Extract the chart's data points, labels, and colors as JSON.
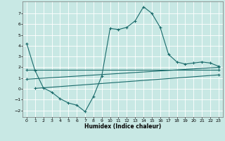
{
  "xlabel": "Humidex (Indice chaleur)",
  "background_color": "#c8e8e4",
  "grid_color": "#ffffff",
  "line_color": "#1a6b6b",
  "xlim": [
    -0.5,
    23.5
  ],
  "ylim": [
    -2.6,
    8.1
  ],
  "yticks": [
    -2,
    -1,
    0,
    1,
    2,
    3,
    4,
    5,
    6,
    7
  ],
  "xticks": [
    0,
    1,
    2,
    3,
    4,
    5,
    6,
    7,
    8,
    9,
    10,
    11,
    12,
    13,
    14,
    15,
    16,
    17,
    18,
    19,
    20,
    21,
    22,
    23
  ],
  "line1_x": [
    0,
    1,
    2,
    3,
    4,
    5,
    6,
    7,
    8,
    9,
    10,
    11,
    12,
    13,
    14,
    15,
    16,
    17,
    18,
    19,
    20,
    21,
    22,
    23
  ],
  "line1_y": [
    4.2,
    1.7,
    0.1,
    -0.3,
    -0.9,
    -1.3,
    -1.5,
    -2.1,
    -0.7,
    1.2,
    5.6,
    5.5,
    5.7,
    6.3,
    7.6,
    7.0,
    5.7,
    3.2,
    2.5,
    2.3,
    2.4,
    2.5,
    2.4,
    2.1
  ],
  "line2_x": [
    0,
    23
  ],
  "line2_y": [
    1.75,
    1.75
  ],
  "line3_x": [
    0,
    23
  ],
  "line3_y": [
    0.9,
    2.0
  ],
  "line4_x": [
    1,
    23
  ],
  "line4_y": [
    0.05,
    1.3
  ]
}
